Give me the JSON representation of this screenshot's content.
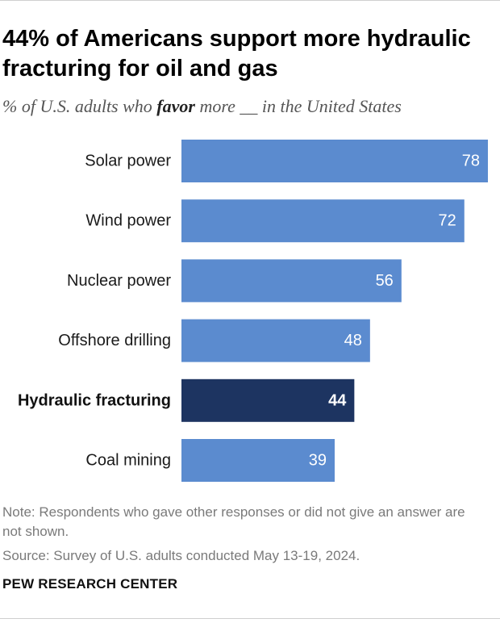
{
  "title": "44% of Americans support more hydraulic fracturing for oil and gas",
  "subtitle": {
    "before": "% of U.S. adults who ",
    "emphasis": "favor",
    "after": " more __ in the United States"
  },
  "chart_data": {
    "type": "bar",
    "orientation": "horizontal",
    "categories": [
      "Solar power",
      "Wind power",
      "Nuclear power",
      "Offshore drilling",
      "Hydraulic fracturing",
      "Coal mining"
    ],
    "values": [
      78,
      72,
      56,
      48,
      44,
      39
    ],
    "highlight": "Hydraulic fracturing",
    "colors": {
      "bar": "#5b8bcf",
      "highlight_bar": "#1d3461",
      "value_label": "#ffffff"
    },
    "xlim": [
      0,
      78
    ],
    "grid": false,
    "data_labels": true
  },
  "note": "Note: Respondents who gave other responses or did not give an answer are not shown.",
  "source": "Source: Survey of U.S. adults conducted May 13-19, 2024.",
  "brand": "PEW RESEARCH CENTER"
}
